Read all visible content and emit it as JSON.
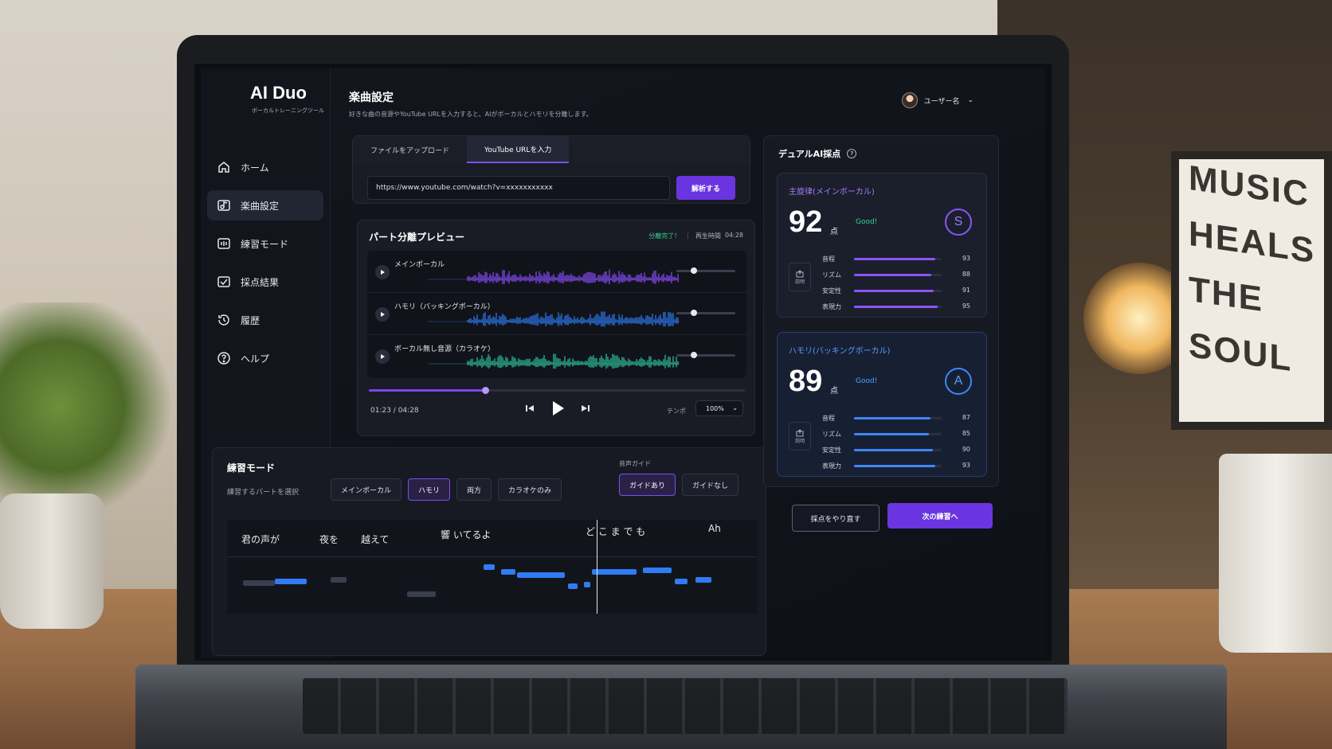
{
  "brand": {
    "name": "AI Duo",
    "subtitle": "ボーカルトレーニングツール"
  },
  "nav": [
    {
      "label": "ホーム",
      "icon": "home-icon"
    },
    {
      "label": "楽曲設定",
      "icon": "music-settings-icon",
      "active": true
    },
    {
      "label": "練習モード",
      "icon": "practice-icon"
    },
    {
      "label": "採点結果",
      "icon": "score-check-icon"
    },
    {
      "label": "履歴",
      "icon": "history-icon"
    },
    {
      "label": "ヘルプ",
      "icon": "help-icon"
    }
  ],
  "header": {
    "title": "楽曲設定",
    "description": "好きな曲の音源やYouTube URLを入力すると、AIがボーカルとハモリを分離します。",
    "user": "ユーザー名"
  },
  "source": {
    "tabs": [
      "ファイルをアップロード",
      "YouTube URLを入力"
    ],
    "active_tab": 1,
    "url_value": "https://www.youtube.com/watch?v=xxxxxxxxxxx",
    "analyze_label": "解析する"
  },
  "preview": {
    "title": "パート分離プレビュー",
    "status": "分離完了！",
    "duration_label": "再生時間",
    "duration": "04:28",
    "tracks": [
      {
        "name": "メインボーカル",
        "color": "#8b4dff",
        "volume": 0.3
      },
      {
        "name": "ハモリ（バッキングボーカル）",
        "color": "#2f7cf5",
        "volume": 0.3
      },
      {
        "name": "ボーカル無し音源（カラオケ）",
        "color": "#2fc7a4",
        "volume": 0.3
      }
    ],
    "position": "01:23 / 04:28",
    "progress": 0.31,
    "tempo_label": "テンポ",
    "tempo_value": "100%"
  },
  "practice": {
    "title": "練習モード",
    "select_label": "練習するパートを選択",
    "parts": [
      "メインボーカル",
      "ハモリ",
      "両方",
      "カラオケのみ"
    ],
    "active_part": 1,
    "guide_label": "音声ガイド",
    "guide_options": [
      "ガイドあり",
      "ガイドなし"
    ],
    "active_guide": 0,
    "lyrics": [
      "君の声が",
      "夜を",
      "越えて",
      "響 いてるよ",
      "ど こ ま で も",
      "Ah"
    ]
  },
  "scoring": {
    "title": "デュアルAI採点",
    "cards": [
      {
        "title": "主旋律(メインボーカル)",
        "score": "92",
        "unit": "点",
        "comment": "Good!",
        "grade": "S",
        "explain": "説明",
        "metrics": [
          {
            "label": "音程",
            "value": 93
          },
          {
            "label": "リズム",
            "value": 88
          },
          {
            "label": "安定性",
            "value": 91
          },
          {
            "label": "表現力",
            "value": 95
          }
        ]
      },
      {
        "title": "ハモリ(バッキングボーカル)",
        "score": "89",
        "unit": "点",
        "comment": "Good!",
        "grade": "A",
        "explain": "説明",
        "metrics": [
          {
            "label": "音程",
            "value": 87
          },
          {
            "label": "リズム",
            "value": 85
          },
          {
            "label": "安定性",
            "value": 90
          },
          {
            "label": "表現力",
            "value": 93
          }
        ]
      }
    ],
    "retry_label": "採点をやり直す",
    "next_label": "次の練習へ"
  },
  "background_sign": [
    "MUSIC",
    "HEALS",
    "THE SOUL"
  ]
}
